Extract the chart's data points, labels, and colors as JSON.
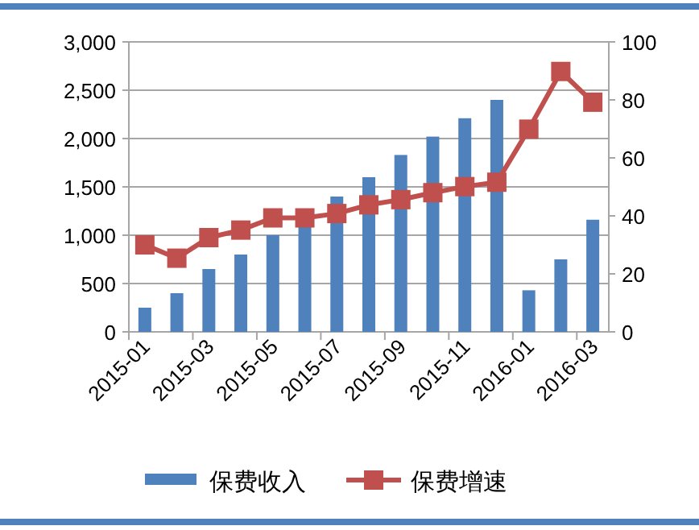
{
  "chart_data": {
    "type": "bar",
    "categories": [
      "2015-01",
      null,
      "2015-03",
      null,
      "2015-05",
      null,
      "2015-07",
      null,
      "2015-09",
      null,
      "2015-11",
      null,
      "2016-01",
      null,
      "2016-03"
    ],
    "series": [
      {
        "name": "保费收入",
        "color": "#4f81bd",
        "values": [
          250,
          400,
          650,
          800,
          1000,
          1100,
          1400,
          1600,
          1830,
          2020,
          2210,
          2400,
          430,
          750,
          1160
        ]
      },
      {
        "name": "保费增速",
        "type": "line",
        "axis": "y2",
        "color": "#c0504d",
        "marker": "square",
        "values": [
          30,
          25.4,
          32.5,
          35.1,
          39.3,
          39.3,
          40.8,
          43.8,
          45.6,
          48,
          50.1,
          51.6,
          69.9,
          89.8,
          79.2
        ]
      }
    ],
    "ylim": [
      0,
      3000
    ],
    "yticks": [
      0,
      500,
      {
        "value": 1000,
        "label": "1,000"
      },
      {
        "value": 1500,
        "label": "1,500"
      },
      {
        "value": 2000,
        "label": "2,000"
      },
      {
        "value": 2500,
        "label": "2,500"
      },
      {
        "value": 3000,
        "label": "3,000"
      }
    ],
    "y2lim": [
      0,
      100
    ],
    "y2ticks": [
      0,
      20,
      40,
      60,
      80,
      100
    ],
    "grid": "y",
    "legend": "bottom"
  }
}
